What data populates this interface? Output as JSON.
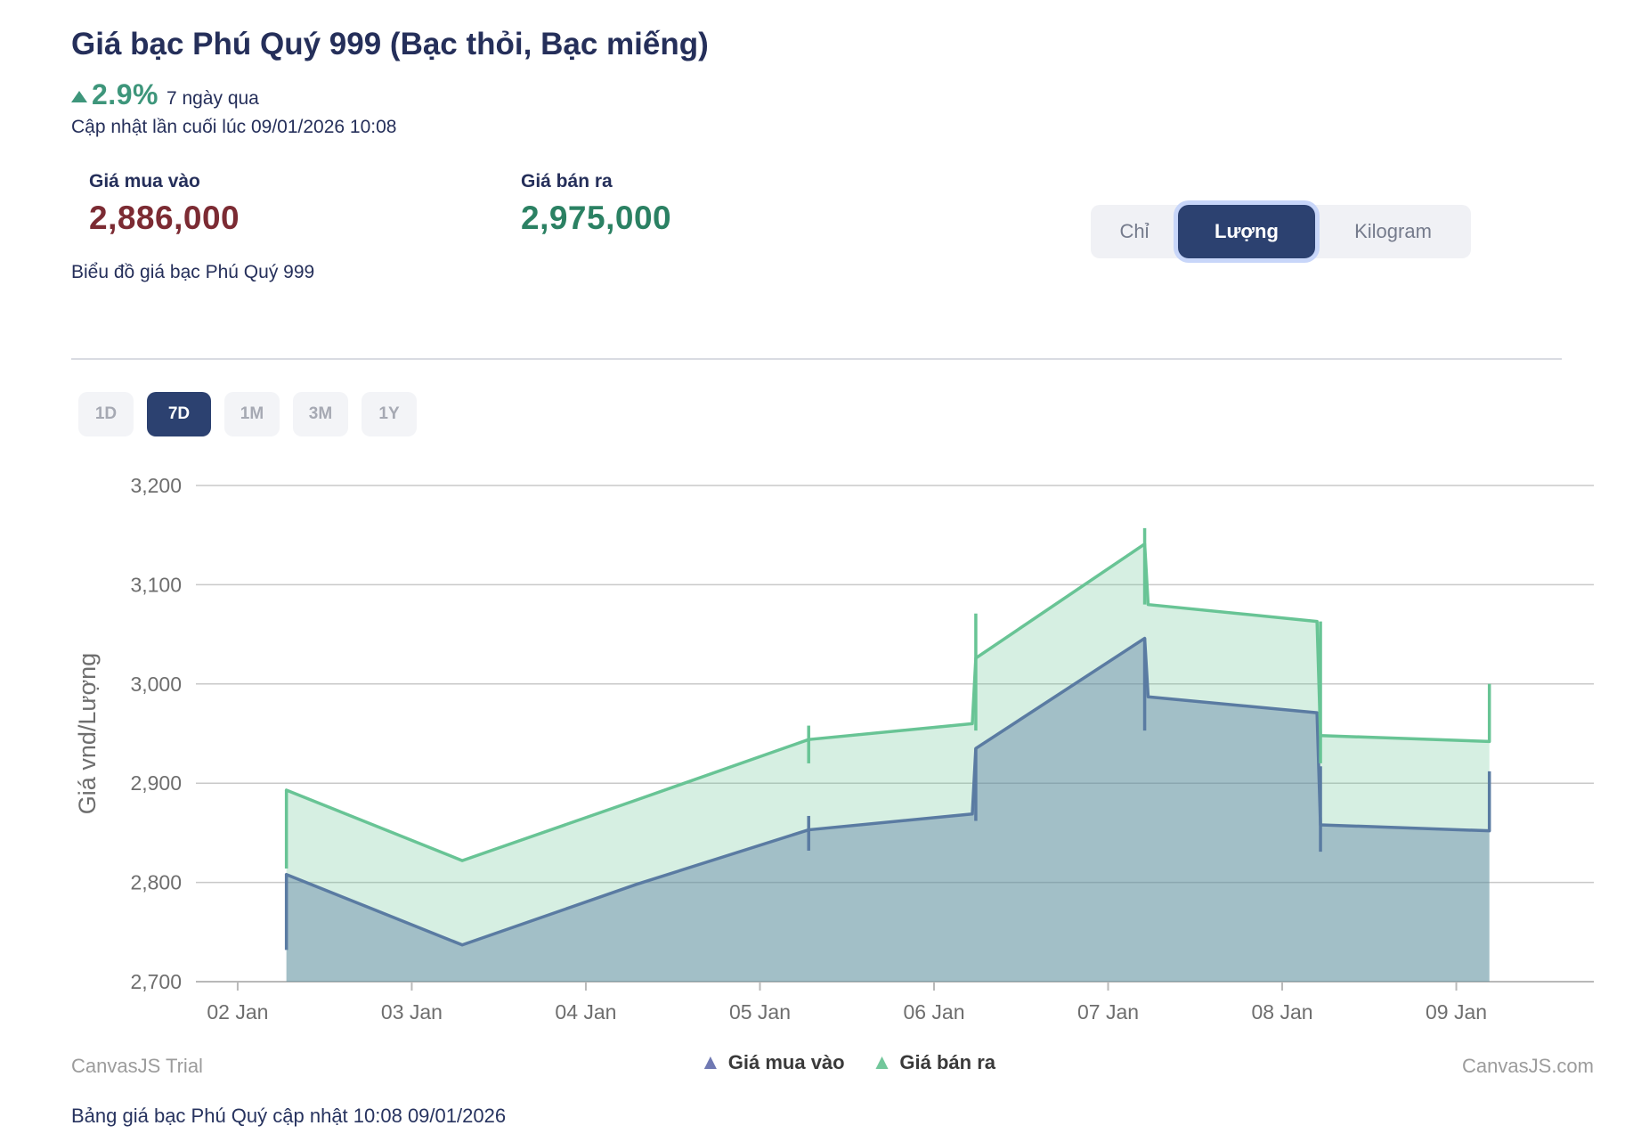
{
  "header": {
    "title": "Giá bạc Phú Quý 999 (Bạc thỏi, Bạc miếng)",
    "change_pct": "2.9%",
    "change_period": "7 ngày qua",
    "last_updated": "Cập nhật lần cuối lúc 09/01/2026 10:08"
  },
  "prices": {
    "buy_label": "Giá mua vào",
    "buy_value": "2,886,000",
    "sell_label": "Giá bán ra",
    "sell_value": "2,975,000"
  },
  "unit_toggle": {
    "options": [
      "Chỉ",
      "Lượng",
      "Kilogram"
    ],
    "selected": "Lượng"
  },
  "chart_section": {
    "title": "Biểu đồ giá bạc Phú Quý 999"
  },
  "range_buttons": {
    "options": [
      "1D",
      "7D",
      "1M",
      "3M",
      "1Y"
    ],
    "selected": "7D"
  },
  "legend": {
    "items": [
      {
        "label": "Giá mua vào",
        "color": "#7079b3"
      },
      {
        "label": "Giá bán ra",
        "color": "#72c79b"
      }
    ]
  },
  "watermarks": {
    "left": "CanvasJS Trial",
    "right": "CanvasJS.com"
  },
  "footer_note": "Bảng giá bạc Phú Quý cập nhật 10:08 09/01/2026",
  "colors": {
    "navy_text": "#252f5a",
    "accent_green": "#3e967b",
    "buy_red": "#7c2b33",
    "sell_green": "#2b8163",
    "selected_navy": "#2c4170",
    "grid": "#c9c9c9",
    "axis": "#b9b9b9",
    "axis_text": "#6e6e6e"
  },
  "chart_data": {
    "type": "area",
    "title": "",
    "xlabel": "",
    "ylabel": "Giá vnd/Lượng",
    "ylim": [
      2700,
      3200
    ],
    "x_domain": [
      1.76,
      9.79
    ],
    "grid": true,
    "legend_position": "bottom",
    "yticks": [
      {
        "value": 2700,
        "label": "2,700"
      },
      {
        "value": 2800,
        "label": "2,800"
      },
      {
        "value": 2900,
        "label": "2,900"
      },
      {
        "value": 3000,
        "label": "3,000"
      },
      {
        "value": 3100,
        "label": "3,100"
      },
      {
        "value": 3200,
        "label": "3,200"
      }
    ],
    "xticks": [
      {
        "x": 2,
        "label": "02 Jan"
      },
      {
        "x": 3,
        "label": "03 Jan"
      },
      {
        "x": 4,
        "label": "04 Jan"
      },
      {
        "x": 5,
        "label": "05 Jan"
      },
      {
        "x": 6,
        "label": "06 Jan"
      },
      {
        "x": 7,
        "label": "07 Jan"
      },
      {
        "x": 8,
        "label": "08 Jan"
      },
      {
        "x": 9,
        "label": "09 Jan"
      }
    ],
    "series": [
      {
        "name": "Giá bán ra",
        "line_color": "#68c495",
        "fill_color": "rgba(104,196,149,0.27)",
        "points": [
          [
            2.28,
            2893
          ],
          [
            3.29,
            2822
          ],
          [
            4.29,
            2883
          ],
          [
            5.28,
            2944
          ],
          [
            6.22,
            2960
          ],
          [
            6.24,
            3026
          ],
          [
            7.21,
            3141
          ],
          [
            7.23,
            3080
          ],
          [
            8.2,
            3063
          ],
          [
            8.22,
            2948
          ],
          [
            9.19,
            2942
          ]
        ],
        "whiskers": [
          [
            2.28,
            2814,
            2893
          ],
          [
            5.28,
            2920,
            2958
          ],
          [
            6.24,
            2953,
            3071
          ],
          [
            7.21,
            3080,
            3157
          ],
          [
            8.22,
            2920,
            3063
          ],
          [
            9.19,
            2942,
            3000
          ]
        ]
      },
      {
        "name": "Giá mua vào",
        "line_color": "#5a7ba2",
        "fill_color": "rgba(90,123,162,0.42)",
        "points": [
          [
            2.28,
            2808
          ],
          [
            3.29,
            2737
          ],
          [
            4.29,
            2798
          ],
          [
            5.28,
            2853
          ],
          [
            6.22,
            2869
          ],
          [
            6.24,
            2935
          ],
          [
            7.21,
            3046
          ],
          [
            7.23,
            2987
          ],
          [
            8.2,
            2971
          ],
          [
            8.22,
            2858
          ],
          [
            9.19,
            2852
          ]
        ],
        "whiskers": [
          [
            2.28,
            2732,
            2808
          ],
          [
            5.28,
            2832,
            2867
          ],
          [
            6.24,
            2862,
            2935
          ],
          [
            7.21,
            2953,
            3046
          ],
          [
            8.22,
            2831,
            2917
          ],
          [
            9.19,
            2852,
            2912
          ]
        ]
      }
    ]
  }
}
